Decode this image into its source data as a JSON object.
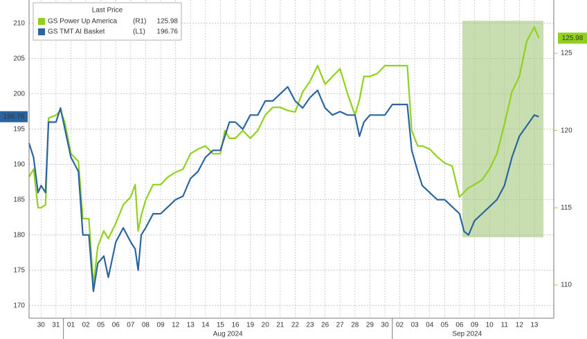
{
  "chart_data": {
    "type": "line",
    "legend_title": "Last Price",
    "x": [
      -0.8,
      -0.5,
      -0.2,
      0,
      0.3,
      0.5,
      1,
      1.3,
      1.6,
      2,
      2.5,
      2.8,
      3.2,
      3.5,
      3.8,
      4.2,
      4.5,
      5,
      5.5,
      6,
      6.3,
      6.5,
      6.7,
      7,
      7.5,
      8,
      8.5,
      9,
      9.5,
      10,
      10.5,
      11,
      11.5,
      12,
      12.3,
      12.6,
      13,
      13.5,
      14,
      14.5,
      15,
      15.5,
      16,
      16.5,
      17,
      17.5,
      18,
      18.5,
      19,
      19.5,
      20,
      20.5,
      21,
      21.3,
      21.6,
      22,
      22.5,
      23,
      23.5,
      24,
      24.5,
      24.8,
      25.2,
      25.5,
      26,
      26.5,
      27,
      27.5,
      28,
      28.3,
      28.6,
      29,
      29.5,
      30,
      30.5,
      31,
      31.5,
      32,
      32.5,
      33,
      33.3
    ],
    "series": [
      {
        "name": "GS Power Up America",
        "axis_tag": "(R1)",
        "axis": "y2",
        "color": "#8fd11b",
        "values": [
          117,
          117.5,
          115,
          115,
          115.2,
          120.8,
          121,
          121.3,
          120.5,
          118.5,
          118,
          114.3,
          114.3,
          110,
          112.5,
          113.5,
          113,
          114,
          115.2,
          115.7,
          116.5,
          113.5,
          114.5,
          115.5,
          116.5,
          116.5,
          117,
          117.3,
          117.5,
          118.5,
          118.8,
          119,
          118.5,
          118.5,
          120,
          119.5,
          119.5,
          120,
          119.5,
          120,
          121,
          121.5,
          121.5,
          121.3,
          121.2,
          122.5,
          123.2,
          124.2,
          123,
          123.5,
          124,
          122.4,
          121,
          122,
          123.5,
          123.5,
          123.7,
          124.2,
          124.2,
          124.2,
          124.2,
          120,
          119,
          119,
          118.8,
          118.3,
          117.9,
          117.7,
          115.7,
          116,
          116.3,
          116.5,
          116.8,
          117.5,
          118.5,
          120.4,
          122.5,
          123.5,
          125.8,
          126.7,
          125.98
        ]
      },
      {
        "name": "GS TMT AI Basket",
        "axis_tag": "(L1)",
        "axis": "y",
        "color": "#2a64a0",
        "values": [
          193,
          191,
          186,
          187,
          186,
          196,
          196,
          198,
          195,
          191,
          189,
          180,
          180,
          172,
          176,
          177,
          174,
          179,
          181,
          179,
          178,
          175,
          180,
          181,
          183,
          183,
          184,
          185,
          185.5,
          188,
          189,
          191,
          192,
          192,
          194,
          196,
          196,
          195,
          197,
          197,
          199,
          199,
          200,
          201,
          199,
          198,
          199.5,
          200.5,
          198,
          197,
          197.5,
          197,
          197,
          194,
          196,
          197,
          197,
          197,
          198.5,
          198.5,
          198.5,
          192,
          189,
          187,
          186,
          185,
          185,
          184,
          183,
          180.5,
          180,
          182,
          183,
          184,
          185,
          187,
          191,
          194,
          195.5,
          197,
          196.76
        ]
      }
    ],
    "xlim": [
      -0.8,
      34.3
    ],
    "xticks": [
      {
        "value": 0,
        "label": "30"
      },
      {
        "value": 1,
        "label": "31"
      },
      {
        "value": 2,
        "label": "01"
      },
      {
        "value": 3,
        "label": "02"
      },
      {
        "value": 4,
        "label": "05"
      },
      {
        "value": 5,
        "label": "06"
      },
      {
        "value": 6,
        "label": "07"
      },
      {
        "value": 7,
        "label": "08"
      },
      {
        "value": 8,
        "label": "09"
      },
      {
        "value": 9,
        "label": "12"
      },
      {
        "value": 10,
        "label": "13"
      },
      {
        "value": 11,
        "label": "14"
      },
      {
        "value": 12,
        "label": "15"
      },
      {
        "value": 13,
        "label": "16"
      },
      {
        "value": 14,
        "label": "19"
      },
      {
        "value": 15,
        "label": "20"
      },
      {
        "value": 16,
        "label": "21"
      },
      {
        "value": 17,
        "label": "22"
      },
      {
        "value": 18,
        "label": "23"
      },
      {
        "value": 19,
        "label": "26"
      },
      {
        "value": 20,
        "label": "27"
      },
      {
        "value": 21,
        "label": "28"
      },
      {
        "value": 22,
        "label": "29"
      },
      {
        "value": 23,
        "label": "30"
      },
      {
        "value": 24,
        "label": "02"
      },
      {
        "value": 25,
        "label": "03"
      },
      {
        "value": 26,
        "label": "04"
      },
      {
        "value": 27,
        "label": "05"
      },
      {
        "value": 28,
        "label": "06"
      },
      {
        "value": 29,
        "label": "09"
      },
      {
        "value": 30,
        "label": "10"
      },
      {
        "value": 31,
        "label": "11"
      },
      {
        "value": 32,
        "label": "12"
      },
      {
        "value": 33,
        "label": "13"
      }
    ],
    "x_groups": [
      {
        "label": "Aug 2024",
        "from": 2,
        "to": 23
      },
      {
        "label": "Sep 2024",
        "from": 24,
        "to": 33
      }
    ],
    "ylim": [
      168.2,
      213.3
    ],
    "yticks": [
      170,
      175,
      180,
      185,
      190,
      195,
      200,
      205,
      210
    ],
    "y2lim": [
      107.85,
      128.45
    ],
    "y2ticks": [
      110,
      115,
      120,
      125
    ],
    "grid": true
  }
}
